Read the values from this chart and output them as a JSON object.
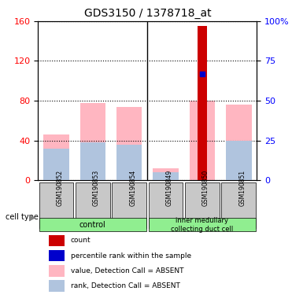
{
  "title": "GDS3150 / 1378718_at",
  "samples": [
    "GSM190852",
    "GSM190853",
    "GSM190854",
    "GSM190849",
    "GSM190850",
    "GSM190851"
  ],
  "groups": [
    {
      "label": "control",
      "samples": [
        "GSM190852",
        "GSM190853",
        "GSM190854"
      ],
      "color": "#90EE90"
    },
    {
      "label": "inner medullary\ncollecting duct cell",
      "samples": [
        "GSM190849",
        "GSM190850",
        "GSM190851"
      ],
      "color": "#90EE90"
    }
  ],
  "left_ylim": [
    0,
    160
  ],
  "right_ylim": [
    0,
    100
  ],
  "left_yticks": [
    0,
    40,
    80,
    120,
    160
  ],
  "right_yticks": [
    0,
    25,
    50,
    75,
    100
  ],
  "right_yticklabels": [
    "0",
    "25",
    "50",
    "75",
    "100%"
  ],
  "left_ycolor": "#FF0000",
  "right_ycolor": "#0000FF",
  "value_absent": [
    46,
    78,
    74,
    12,
    80,
    76
  ],
  "rank_absent": [
    32,
    38,
    36,
    8,
    0,
    40
  ],
  "count": [
    0,
    0,
    0,
    0,
    155,
    0
  ],
  "percentile_rank": [
    0,
    0,
    0,
    0,
    67,
    0
  ],
  "has_count": [
    false,
    false,
    false,
    false,
    true,
    false
  ],
  "has_percentile": [
    false,
    false,
    false,
    false,
    true,
    false
  ],
  "value_absent_color": "#FFB6C1",
  "rank_absent_color": "#B0C4DE",
  "count_color": "#CC0000",
  "percentile_color": "#0000CC",
  "bg_color_group": [
    "#D0D0D0",
    "#D0D0D0",
    "#D0D0D0",
    "#D0D0D0",
    "#D0D0D0",
    "#D0D0D0"
  ],
  "legend_items": [
    {
      "label": "count",
      "color": "#CC0000",
      "marker": "s"
    },
    {
      "label": "percentile rank within the sample",
      "color": "#0000CC",
      "marker": "s"
    },
    {
      "label": "value, Detection Call = ABSENT",
      "color": "#FFB6C1",
      "marker": "s"
    },
    {
      "label": "rank, Detection Call = ABSENT",
      "color": "#B0C4DE",
      "marker": "s"
    }
  ]
}
